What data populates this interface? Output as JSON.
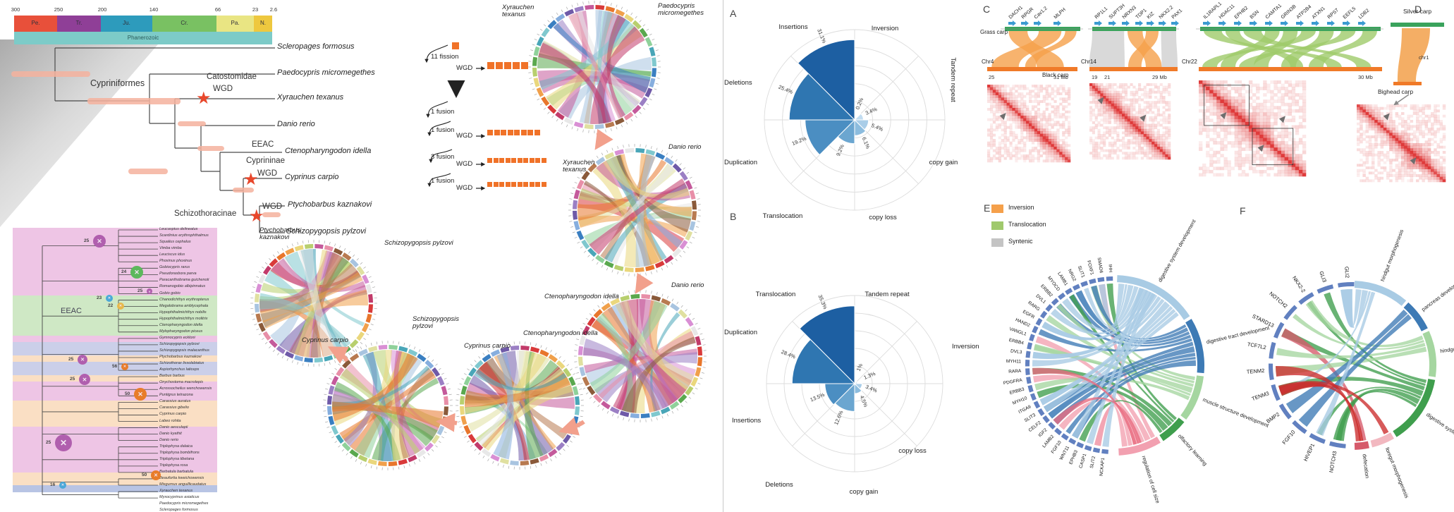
{
  "panel_letters": {
    "A": "A",
    "B": "B",
    "C": "C",
    "D": "D",
    "E": "E",
    "F": "F"
  },
  "timescale": {
    "ticks": [
      "300",
      "250",
      "200",
      "140",
      "66",
      "23",
      "2.6"
    ],
    "periods": [
      {
        "label": "Pe.",
        "color": "#e8503a"
      },
      {
        "label": "Tr.",
        "color": "#8f3f97"
      },
      {
        "label": "Ju.",
        "color": "#2d9bbc"
      },
      {
        "label": "Cr.",
        "color": "#79c162"
      },
      {
        "label": "Pa.",
        "color": "#e9e583"
      },
      {
        "label": "N.",
        "color": "#eec83f"
      }
    ],
    "eon_label": "Phanerozoic"
  },
  "main_tree": {
    "species": [
      "Scleropages formosus",
      "Paedocypris micromegethes",
      "Xyrauchen texanus",
      "Danio rerio",
      "Ctenopharyngodon idella",
      "Cyprinus carpio",
      "Ptychobarbus kaznakovi",
      "Schizopygopsis pylzovi"
    ],
    "clades": {
      "cypriniformes": "Cypriniformes",
      "catostomidae": "Catostomidae",
      "wgd1": "WGD",
      "eeac": "EEAC",
      "cyprininae": "Cyprininae",
      "wgd2": "WGD",
      "schizothoracinae": "Schizothoracinae",
      "wgd3": "WGD"
    }
  },
  "karyotype_flow": {
    "steps": [
      {
        "label": "11 fission",
        "wgd": "WGD",
        "squares": 5
      },
      {
        "label": "1 fusion",
        "wgd": "",
        "squares": 0
      },
      {
        "label": "1 fusion",
        "wgd": "WGD",
        "squares": 8
      },
      {
        "label": "3 fusion",
        "wgd": "WGD",
        "squares": 10
      },
      {
        "label": "1 fusion",
        "wgd": "WGD",
        "squares": 10
      }
    ]
  },
  "circos": {
    "pairs": [
      {
        "a": "Xyrauchen\ntexanus",
        "b": "Paedocypris\nmicromegethes"
      },
      {
        "a": "Xyrauchen\ntexanus",
        "b": "Danio rerio"
      },
      {
        "a": "Ctenopharyngodon idella",
        "b": "Danio rerio"
      },
      {
        "a": "Cyprinus carpio",
        "b": "Ctenopharyngodon idella"
      },
      {
        "a": "Cyprinus carpio",
        "b": "Schizopygopsis\npylzovi"
      },
      {
        "a": "Ptychobarbus\nkaznakovi",
        "b": "Schizopygopsis pylzovi"
      }
    ]
  },
  "subtree": {
    "eeac_label": "EEAC",
    "species": [
      "Leucaspius delineatus",
      "Scardinius erythrophthalmus",
      "Squalius cephalus",
      "Vimba vimba",
      "Leuciscus idus",
      "Phoxinus phoxinus",
      "Gobiocypris rarus",
      "Pseudorasbora parva",
      "Paracanthobrama guichenoti",
      "Romanogobio albipinnatus",
      "Gobio gobio",
      "Chanodichthys erythropterus",
      "Megalobrama amblycephala",
      "Hypophthalmichthys nobilis",
      "Hypophthalmichthys molitrix",
      "Ctenopharyngodon idella",
      "Mylopharyngodon piceus",
      "Gymnocypris eckloni",
      "Schizopygopsis pylzovi",
      "Schizopygopsis malacanthus",
      "Ptychobarbus kaznakovi",
      "Schizothorax lissolabiatus",
      "Aspiorhynchus laticeps",
      "Barbus barbus",
      "Onychostoma macrolepis",
      "Acrossocheilus wenchowensis",
      "Puntigrus tetrazona",
      "Carassius auratus",
      "Carassius gibelio",
      "Cyprinus carpio",
      "Labeo rohita",
      "Danio aesculapii",
      "Danio kyathit",
      "Danio rerio",
      "Triplophysa dalaica",
      "Triplophysa bombifrons",
      "Triplophysa tibetana",
      "Triplophysa rosa",
      "Barbatula barbatula",
      "Beaufortia kweichowensis",
      "Misgurnus anguillicaudatus",
      "Xyrauchen texanus",
      "Myxocyprinus asiaticus",
      "Paedocypris micromegethes",
      "Scleropages formosus"
    ],
    "badges": [
      {
        "n": "25",
        "color": "#b05fae"
      },
      {
        "n": "24",
        "color": "#5cb85c"
      },
      {
        "n": "25",
        "color": "#b05fae"
      },
      {
        "n": "23",
        "color": "#4aa8d8"
      },
      {
        "n": "22",
        "color": "#e8b84a"
      },
      {
        "n": "25",
        "color": "#b05fae"
      },
      {
        "n": "25",
        "color": "#b05fae"
      },
      {
        "n": "56",
        "color": "#e87c2a"
      },
      {
        "n": "50",
        "color": "#e87c2a"
      },
      {
        "n": "25",
        "color": "#b05fae"
      },
      {
        "n": "50",
        "color": "#e87c2a"
      },
      {
        "n": "16",
        "color": "#4aa8d8"
      }
    ]
  },
  "chart_data": [
    {
      "type": "rose",
      "panel": "A",
      "rings": 5,
      "ring_max_pct": 35,
      "sector_width_deg": 45,
      "sectors": [
        {
          "label": "Inversion",
          "value": 0.2,
          "display": "0.2%"
        },
        {
          "label": "Tandem repeat",
          "value": 3.4,
          "display": "3.4%"
        },
        {
          "label": "copy gain",
          "value": 5.4,
          "display": "5.4%"
        },
        {
          "label": "copy loss",
          "value": 6.1,
          "display": "6.1%"
        },
        {
          "label": "Translocation",
          "value": 9.2,
          "display": "9.2%"
        },
        {
          "label": "Duplication",
          "value": 19.2,
          "display": "19.2%"
        },
        {
          "label": "Deletions",
          "value": 25.4,
          "display": "25.4%"
        },
        {
          "label": "Insertions",
          "value": 31.1,
          "display": "31.1%"
        }
      ]
    },
    {
      "type": "rose",
      "panel": "B",
      "rings": 5,
      "ring_max_pct": 40,
      "sector_width_deg": 45,
      "sectors": [
        {
          "label": "Tandem repeat",
          "value": 1.0,
          "display": "1%"
        },
        {
          "label": "Inversion",
          "value": 1.3,
          "display": "1.3%"
        },
        {
          "label": "copy loss",
          "value": 3.4,
          "display": "3.4%"
        },
        {
          "label": "copy gain",
          "value": 4.5,
          "display": "4.5%"
        },
        {
          "label": "Deletions",
          "value": 12.6,
          "display": "12.6%"
        },
        {
          "label": "Insertions",
          "value": 13.5,
          "display": "13.5%"
        },
        {
          "label": "Duplication",
          "value": 28.4,
          "display": "28.4%"
        },
        {
          "label": "Translocation",
          "value": 35.3,
          "display": "35.3%"
        }
      ]
    }
  ],
  "panelC": {
    "grass_carp": "Grass carp",
    "black_carp": "Black carp",
    "chrs": [
      "Chr4",
      "Chr14",
      "Chr22"
    ],
    "genes1": [
      "DACH1",
      "RPGR",
      "Cav1.2",
      "MLPH"
    ],
    "genes2": [
      "RP1L1",
      "SUPT3H",
      "NRXN3",
      "TDP1",
      "KIZ",
      "NKX2.2",
      "PAX1"
    ],
    "genes3": [
      "IL1RAPL1",
      "HDAC11",
      "EPHB2",
      "BSN",
      "CAMTA1",
      "GRIN3B",
      "ATP2B4",
      "ATXN1",
      "RPS7",
      "EEFL5",
      "LDB2"
    ],
    "axis1": [
      "25",
      "31 Mb"
    ],
    "axis2": [
      "19",
      "21",
      "29 Mb"
    ],
    "axis3": [
      "30 Mb"
    ],
    "legend": [
      {
        "label": "Inversion",
        "color": "#f5a04a"
      },
      {
        "label": "Translocation",
        "color": "#a0c96c"
      },
      {
        "label": "Syntenic",
        "color": "#c4c4c4"
      }
    ]
  },
  "panelD": {
    "silver_carp": "Silver carp",
    "chr": "chr1",
    "bighead_carp": "Bighead carp"
  },
  "panelE": {
    "genes": [
      "IHH",
      "SMAD6",
      "FOXF1",
      "SLIT1",
      "NRG2",
      "LAMB1",
      "MYOCD",
      "ERBB2",
      "DVL1",
      "RARG",
      "EGFR",
      "HAND2",
      "VANGL1",
      "ERBB4",
      "DVL3",
      "MYH11",
      "RARA",
      "PDGFRA",
      "ERBB3",
      "MYH10",
      "ITGA9",
      "SLIT3",
      "CELF2",
      "IGF2",
      "LAMB2",
      "FGF10",
      "WNT11",
      "EPHB3",
      "CASP1",
      "SLIT2",
      "NCKAP1"
    ],
    "terms": [
      {
        "label": "digestive system development",
        "color": "#a8cbe4"
      },
      {
        "label": "digestive tract development",
        "color": "#3d7ab5"
      },
      {
        "label": "muscle structure development",
        "color": "#a5d6a0"
      },
      {
        "label": "olfactory learning",
        "color": "#3f9e4d"
      },
      {
        "label": "regulation of cell size",
        "color": "#f2a0b0"
      }
    ]
  },
  "panelF": {
    "genes": [
      "GLI2",
      "GLI3",
      "NKX2-2",
      "NOTCH2",
      "STARD13",
      "TCF7L2",
      "TENM2",
      "TENM3",
      "BMP2",
      "FGF10",
      "HIVEP1",
      "NOTCH3"
    ],
    "terms": [
      {
        "label": "hindgut morphogenesis",
        "color": "#a8cbe4"
      },
      {
        "label": "pancreas development",
        "color": "#3d7ab5"
      },
      {
        "label": "hindgut development",
        "color": "#a5d6a0"
      },
      {
        "label": "digestive system development",
        "color": "#3f9e4d"
      },
      {
        "label": "foregut morphogenesis",
        "color": "#f2b8c0"
      },
      {
        "label": "defecation",
        "color": "#d65a6a"
      }
    ]
  },
  "colors": {
    "star": "#e8472b",
    "salmon_bar": "#f4b29e",
    "arrow_pink": "#f2a08c",
    "grass_bar": "#3aa35c",
    "black_bar": "#f07a28",
    "gene_arrow": "#3b9bd1",
    "gene_arc": "#6180c0",
    "heat_red": "#dc2626",
    "rose_shades": [
      "#1d5fa2",
      "#2f76b1",
      "#4b8ec2",
      "#6ba6d0",
      "#8cbcde",
      "#a9cde8",
      "#c2dcf0",
      "#d8e9f6"
    ],
    "circos_palette": [
      "#d93a3a",
      "#e8762c",
      "#f0a04b",
      "#ead77c",
      "#b8cf6e",
      "#5aa84e",
      "#8fd19a",
      "#49a6b8",
      "#7fc8ce",
      "#3a7fc1",
      "#86aede",
      "#6f5aa8",
      "#9b7fc4",
      "#c45a9b",
      "#e88fa8",
      "#8a5a3a",
      "#b87a50",
      "#a8c4e0",
      "#e0e0a0",
      "#d98fd4",
      "#e8e8e8",
      "#c23b6a"
    ]
  }
}
